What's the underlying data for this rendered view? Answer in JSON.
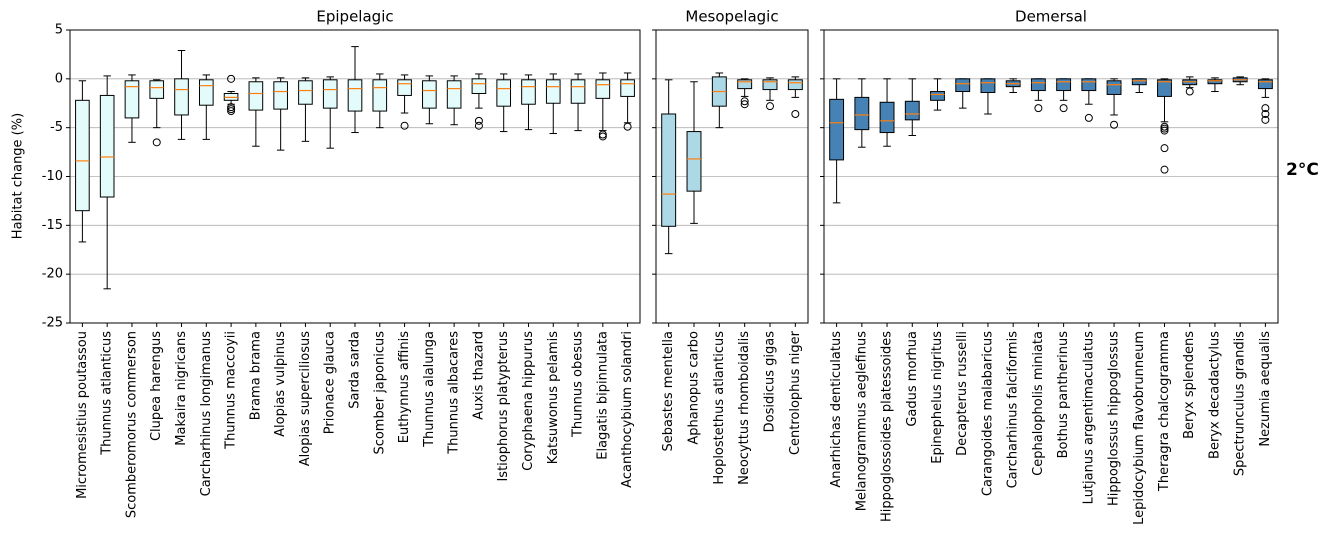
{
  "chart_data": [
    {
      "type": "box",
      "title": "Epipelagic",
      "ylabel": "Habitat change (%)",
      "color": "#e4fbfb",
      "median_color": "#ff7f0e",
      "ylim": [
        -25,
        5
      ],
      "yticks": [
        -25,
        -20,
        -15,
        -10,
        -5,
        0,
        5
      ],
      "grid": true,
      "categories": [
        "Micromesistius poutassou",
        "Thunnus atlanticus",
        "Scomberomorus commerson",
        "Clupea harengus",
        "Makaira nigricans",
        "Carcharhinus longimanus",
        "Thunnus maccoyii",
        "Brama brama",
        "Alopias vulpinus",
        "Alopias superciliosus",
        "Prionace glauca",
        "Sarda sarda",
        "Scomber japonicus",
        "Euthynnus affinis",
        "Thunnus alalunga",
        "Thunnus albacares",
        "Auxis thazard",
        "Istiophorus platypterus",
        "Coryphaena hippurus",
        "Katsuwonus pelamis",
        "Thunnus obesus",
        "Elagatis bipinnulata",
        "Acanthocybium solandri"
      ],
      "boxes": [
        {
          "whislo": -16.7,
          "q1": -13.5,
          "med": -8.4,
          "q3": -2.2,
          "whishi": -0.2
        },
        {
          "whislo": -21.5,
          "q1": -12.1,
          "med": -8.0,
          "q3": -1.7,
          "whishi": 0.3
        },
        {
          "whislo": -6.5,
          "q1": -4.0,
          "med": -0.8,
          "q3": -0.2,
          "whishi": 0.4
        },
        {
          "whislo": -5.0,
          "q1": -2.0,
          "med": -0.9,
          "q3": -0.2,
          "whishi": -0.1,
          "fliers": [
            -6.5
          ]
        },
        {
          "whislo": -6.2,
          "q1": -3.7,
          "med": -1.1,
          "q3": 0,
          "whishi": 2.9
        },
        {
          "whislo": -6.2,
          "q1": -2.7,
          "med": -0.7,
          "q3": -0.1,
          "whishi": 0.4
        },
        {
          "whislo": -2.6,
          "q1": -2.2,
          "med": -1.9,
          "q3": -1.5,
          "whishi": -1.3,
          "fliers": [
            0,
            -2.9,
            -3.1,
            -3.3
          ]
        },
        {
          "whislo": -6.9,
          "q1": -3.2,
          "med": -1.5,
          "q3": -0.3,
          "whishi": 0.1
        },
        {
          "whislo": -7.3,
          "q1": -3.1,
          "med": -1.3,
          "q3": -0.3,
          "whishi": 0.1
        },
        {
          "whislo": -6.4,
          "q1": -2.6,
          "med": -1.2,
          "q3": -0.2,
          "whishi": 0.1
        },
        {
          "whislo": -7.1,
          "q1": -3.0,
          "med": -1.1,
          "q3": -0.1,
          "whishi": 0.2
        },
        {
          "whislo": -5.5,
          "q1": -3.3,
          "med": -1.0,
          "q3": -0.1,
          "whishi": 3.3
        },
        {
          "whislo": -5.0,
          "q1": -3.3,
          "med": -0.9,
          "q3": -0.1,
          "whishi": 0.5
        },
        {
          "whislo": -3.5,
          "q1": -1.7,
          "med": -0.5,
          "q3": -0.1,
          "whishi": 0.4,
          "fliers": [
            -4.8
          ]
        },
        {
          "whislo": -4.6,
          "q1": -3.0,
          "med": -1.2,
          "q3": -0.2,
          "whishi": 0.3
        },
        {
          "whislo": -4.7,
          "q1": -3.0,
          "med": -1.0,
          "q3": -0.2,
          "whishi": 0.3
        },
        {
          "whislo": -3.0,
          "q1": -1.5,
          "med": -0.5,
          "q3": 0,
          "whishi": 0.5,
          "fliers": [
            -4.3,
            -4.8
          ]
        },
        {
          "whislo": -5.4,
          "q1": -2.8,
          "med": -1.0,
          "q3": -0.1,
          "whishi": 0.5
        },
        {
          "whislo": -5.2,
          "q1": -2.6,
          "med": -0.8,
          "q3": -0.1,
          "whishi": 0.4
        },
        {
          "whislo": -5.6,
          "q1": -2.5,
          "med": -0.8,
          "q3": -0.1,
          "whishi": 0.5
        },
        {
          "whislo": -5.3,
          "q1": -2.5,
          "med": -0.8,
          "q3": -0.1,
          "whishi": 0.5
        },
        {
          "whislo": -5.3,
          "q1": -2.0,
          "med": -0.6,
          "q3": -0.1,
          "whishi": 0.6,
          "fliers": [
            -5.7,
            -5.9
          ]
        },
        {
          "whislo": -4.5,
          "q1": -1.8,
          "med": -0.5,
          "q3": -0.1,
          "whishi": 0.6,
          "fliers": [
            -4.9
          ]
        }
      ]
    },
    {
      "type": "box",
      "title": "Mesopelagic",
      "color": "#add8e6",
      "median_color": "#ff7f0e",
      "ylim": [
        -25,
        5
      ],
      "yticks": [
        -25,
        -20,
        -15,
        -10,
        -5,
        0,
        5
      ],
      "grid": true,
      "categories": [
        "Sebastes mentella",
        "Aphanopus carbo",
        "Hoplostethus atlanticus",
        "Neocyttus rhomboidalis",
        "Dosidicus gigas",
        "Centrolophus niger"
      ],
      "boxes": [
        {
          "whislo": -17.9,
          "q1": -15.1,
          "med": -11.8,
          "q3": -3.6,
          "whishi": -0.1
        },
        {
          "whislo": -14.8,
          "q1": -11.5,
          "med": -8.2,
          "q3": -5.4,
          "whishi": -0.3
        },
        {
          "whislo": -5.0,
          "q1": -2.8,
          "med": -1.3,
          "q3": 0.2,
          "whishi": 0.6
        },
        {
          "whislo": -1.8,
          "q1": -1.0,
          "med": -0.3,
          "q3": -0.1,
          "whishi": 0,
          "fliers": [
            -2.3,
            -2.6
          ]
        },
        {
          "whislo": -2.2,
          "q1": -1.1,
          "med": -0.3,
          "q3": -0.1,
          "whishi": 0.1,
          "fliers": [
            -2.8
          ]
        },
        {
          "whislo": -1.9,
          "q1": -1.1,
          "med": -0.4,
          "q3": -0.1,
          "whishi": 0.2,
          "fliers": [
            -3.6
          ]
        }
      ]
    },
    {
      "type": "box",
      "title": "Demersal",
      "annotation": "2°C",
      "color": "#4682b4",
      "median_color": "#ff7f0e",
      "ylim": [
        -25,
        5
      ],
      "yticks": [
        -25,
        -20,
        -15,
        -10,
        -5,
        0,
        5
      ],
      "grid": true,
      "categories": [
        "Anarhichas denticulatus",
        "Melanogrammus aeglefinus",
        "Hippoglossoides platessoides",
        "Gadus morhua",
        "Epinephelus nigritus",
        "Decapterus russelli",
        "Carangoides malabaricus",
        "Carcharhinus falciformis",
        "Cephalopholis miniata",
        "Bothus pantherinus",
        "Lutjanus argentimaculatus",
        "Hippoglossus hippoglossus",
        "Lepidocybium flavobrunneum",
        "Theragra chalcogramma",
        "Beryx splendens",
        "Beryx decadactylus",
        "Spectrunculus grandis",
        "Nezumia aequalis"
      ],
      "boxes": [
        {
          "whislo": -12.7,
          "q1": -8.3,
          "med": -4.5,
          "q3": -2.1,
          "whishi": 0
        },
        {
          "whislo": -7.0,
          "q1": -5.2,
          "med": -3.7,
          "q3": -1.9,
          "whishi": 0
        },
        {
          "whislo": -6.9,
          "q1": -5.5,
          "med": -4.3,
          "q3": -2.4,
          "whishi": 0
        },
        {
          "whislo": -5.8,
          "q1": -4.2,
          "med": -3.6,
          "q3": -2.3,
          "whishi": 0
        },
        {
          "whislo": -3.2,
          "q1": -2.2,
          "med": -1.6,
          "q3": -1.3,
          "whishi": 0
        },
        {
          "whislo": -3.0,
          "q1": -1.3,
          "med": -0.5,
          "q3": 0,
          "whishi": 0
        },
        {
          "whislo": -3.6,
          "q1": -1.4,
          "med": -0.4,
          "q3": 0,
          "whishi": 0
        },
        {
          "whislo": -1.4,
          "q1": -0.8,
          "med": -0.5,
          "q3": -0.2,
          "whishi": 0
        },
        {
          "whislo": -2.2,
          "q1": -1.2,
          "med": -0.4,
          "q3": 0,
          "whishi": 0,
          "fliers": [
            -3.0
          ]
        },
        {
          "whislo": -2.2,
          "q1": -1.2,
          "med": -0.3,
          "q3": 0,
          "whishi": 0,
          "fliers": [
            -3.0
          ]
        },
        {
          "whislo": -2.6,
          "q1": -1.2,
          "med": -0.3,
          "q3": 0,
          "whishi": 0,
          "fliers": [
            -4.0
          ]
        },
        {
          "whislo": -3.7,
          "q1": -1.6,
          "med": -0.6,
          "q3": -0.2,
          "whishi": 0,
          "fliers": [
            -4.7
          ]
        },
        {
          "whislo": -1.4,
          "q1": -0.6,
          "med": -0.2,
          "q3": 0,
          "whishi": 0
        },
        {
          "whislo": -4.4,
          "q1": -1.8,
          "med": -0.3,
          "q3": -0.1,
          "whishi": 0,
          "fliers": [
            -4.9,
            -5.1,
            -5.3,
            -7.1,
            -9.3
          ]
        },
        {
          "whislo": -0.9,
          "q1": -0.6,
          "med": -0.3,
          "q3": -0.1,
          "whishi": 0.2,
          "fliers": [
            -1.3
          ]
        },
        {
          "whislo": -1.3,
          "q1": -0.5,
          "med": -0.2,
          "q3": -0.1,
          "whishi": 0.1
        },
        {
          "whislo": -0.6,
          "q1": -0.3,
          "med": -0.1,
          "q3": 0.1,
          "whishi": 0.2
        },
        {
          "whislo": -1.9,
          "q1": -1.0,
          "med": -0.3,
          "q3": -0.1,
          "whishi": 0,
          "fliers": [
            -3.0,
            -3.6,
            -4.2
          ]
        }
      ]
    }
  ]
}
